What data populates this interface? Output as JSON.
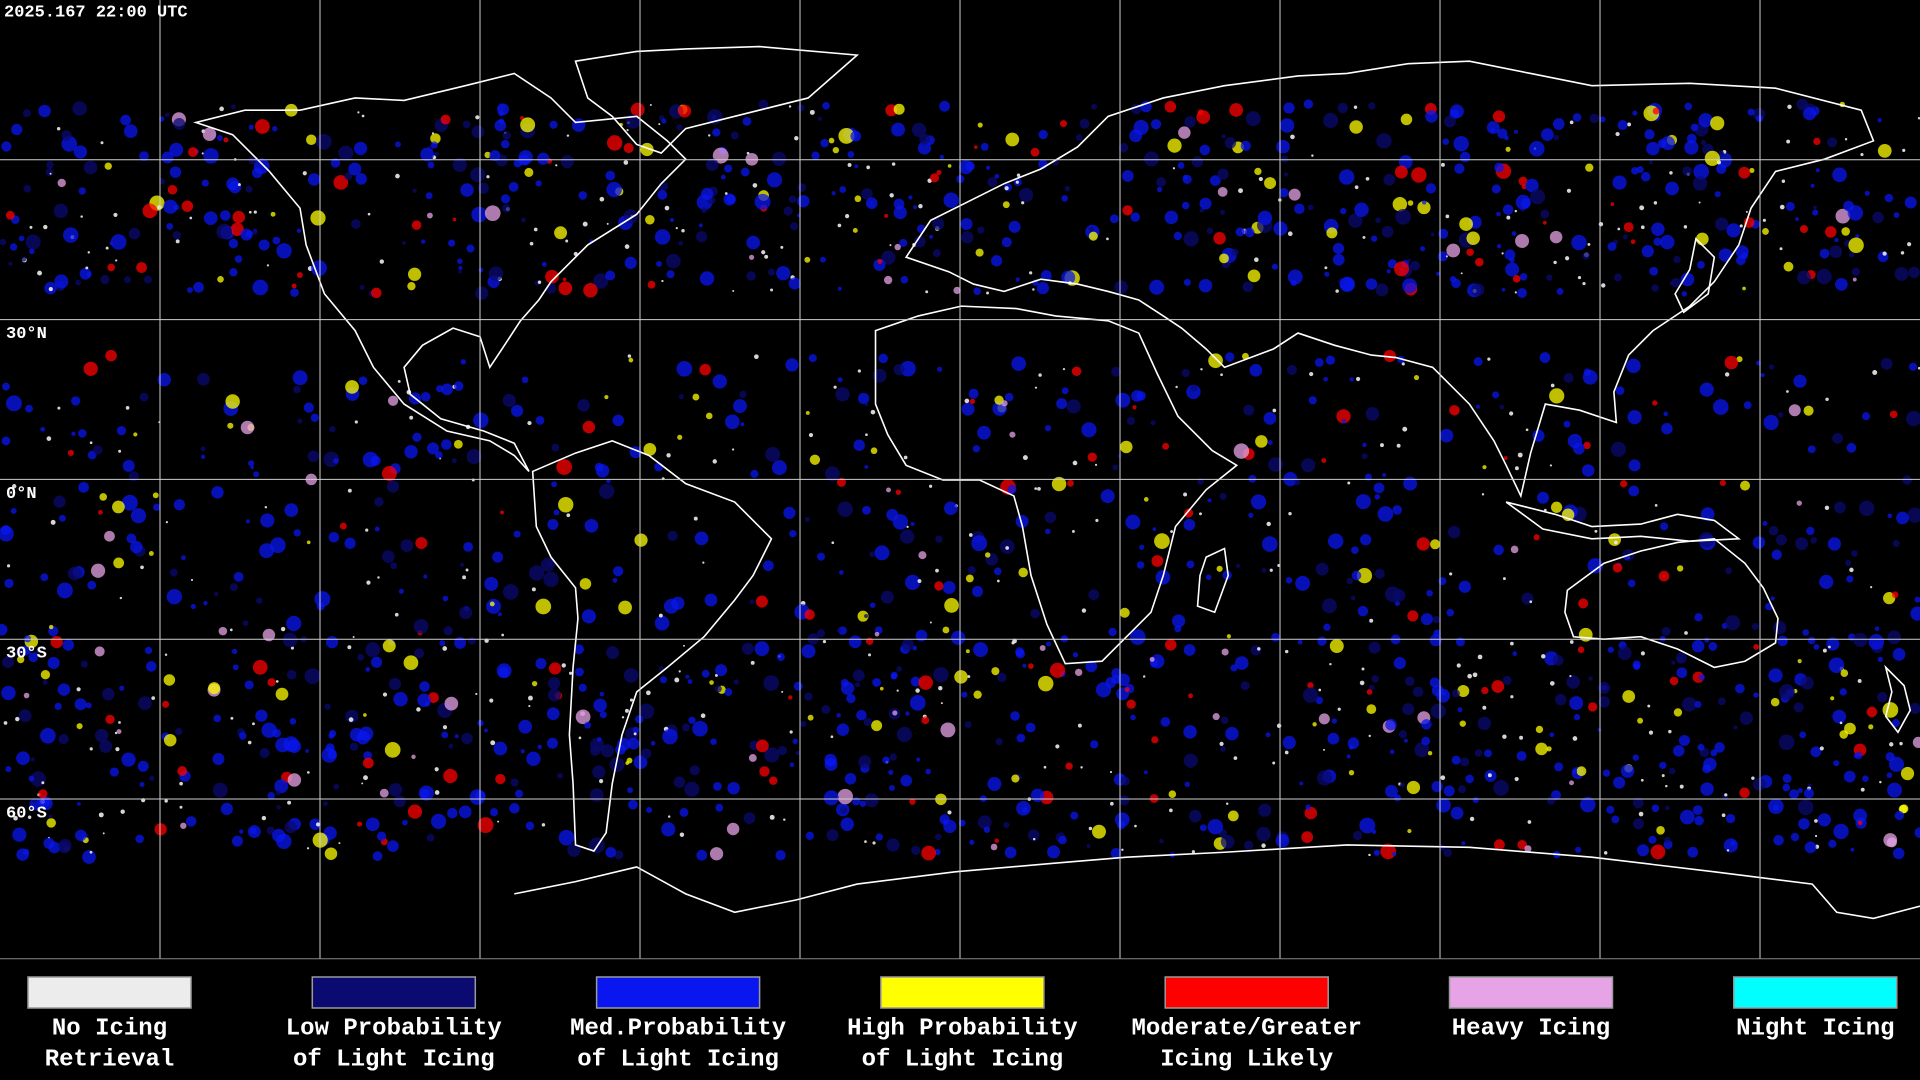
{
  "map": {
    "timestamp": "2025.167 22:00 UTC",
    "latitude_labels": [
      "30°N",
      "0°N",
      "30°S",
      "60°S"
    ]
  },
  "legend": {
    "items": [
      {
        "lines": [
          "No Icing",
          "Retrieval"
        ],
        "color": "#ececec"
      },
      {
        "lines": [
          "Low Probability",
          "of Light Icing"
        ],
        "color": "#0a0a70"
      },
      {
        "lines": [
          "Med.Probability",
          "of Light Icing"
        ],
        "color": "#0a16f0"
      },
      {
        "lines": [
          "High Probability",
          "of Light Icing"
        ],
        "color": "#ffff00"
      },
      {
        "lines": [
          "Moderate/Greater",
          "Icing Likely"
        ],
        "color": "#ff0000"
      },
      {
        "lines": [
          "Heavy Icing"
        ],
        "color": "#e6a3e6"
      },
      {
        "lines": [
          "Night Icing"
        ],
        "color": "#00ffff"
      }
    ]
  }
}
